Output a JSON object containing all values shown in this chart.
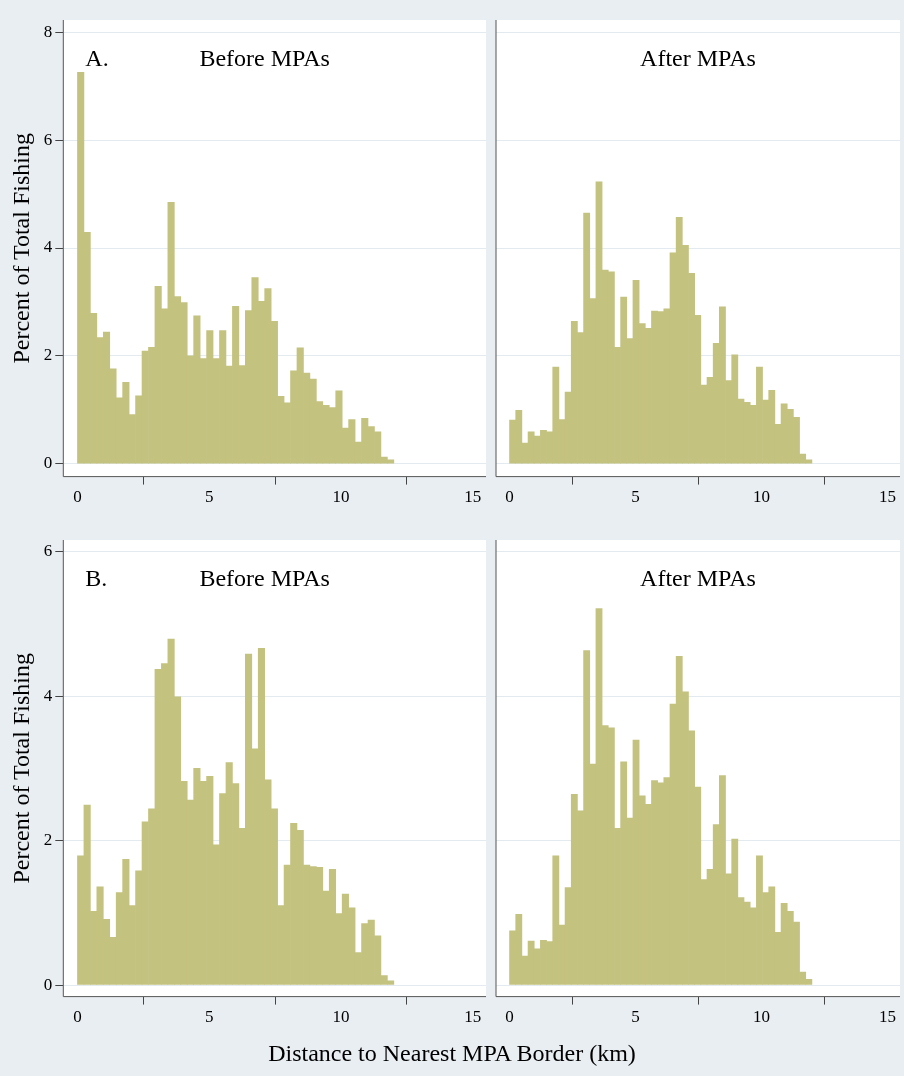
{
  "chart_data": [
    {
      "type": "histogram",
      "title": "Before MPAs",
      "annotations": [
        "A."
      ],
      "ylabel": "Percent of Total Fishing",
      "color": "#c4c27f",
      "grid": "y",
      "xlim": [
        -0.54,
        15.5
      ],
      "xticks": [
        0,
        5,
        10,
        15
      ],
      "ylim": [
        -0.24,
        8.23
      ],
      "yticks": [
        0,
        2,
        4,
        6,
        8
      ],
      "bins": [
        0,
        0.24,
        0.49,
        0.73,
        0.98,
        1.22,
        1.47,
        1.71,
        1.96,
        2.2,
        2.45,
        2.69,
        2.94,
        3.18,
        3.43,
        3.67,
        3.92,
        4.16,
        4.41,
        4.65,
        4.9,
        5.14,
        5.39,
        5.63,
        5.88,
        6.12,
        6.37,
        6.61,
        6.86,
        7.1,
        7.35,
        7.59,
        7.84,
        8.08,
        8.33,
        8.57,
        8.82,
        9.06,
        9.31,
        9.55,
        9.8,
        10.04,
        10.29,
        10.53,
        10.78,
        11.02,
        11.27,
        11.51,
        11.76,
        12
      ],
      "values": [
        7.26,
        4.29,
        2.79,
        2.34,
        2.44,
        1.76,
        1.22,
        1.51,
        0.91,
        1.26,
        2.09,
        2.16,
        3.29,
        2.87,
        4.85,
        3.1,
        2.99,
        2.0,
        2.74,
        1.95,
        2.47,
        1.95,
        2.47,
        1.81,
        2.92,
        1.82,
        2.84,
        3.45,
        3.01,
        3.25,
        2.64,
        1.25,
        1.13,
        1.72,
        2.15,
        1.68,
        1.57,
        1.15,
        1.08,
        1.04,
        1.35,
        0.66,
        0.82,
        0.4,
        0.84,
        0.69,
        0.59,
        0.12,
        0.07
      ]
    },
    {
      "type": "histogram",
      "title": "After MPAs",
      "color": "#c4c27f",
      "grid": "y",
      "tick_labels": "x",
      "xlim": [
        -0.54,
        15.5
      ],
      "xticks": [
        0,
        5,
        10,
        15
      ],
      "ylim": [
        -0.24,
        8.23
      ],
      "yticks": [
        0,
        2,
        4,
        6,
        8
      ],
      "bins": [
        0,
        0.24,
        0.49,
        0.73,
        0.98,
        1.22,
        1.47,
        1.71,
        1.96,
        2.2,
        2.45,
        2.69,
        2.94,
        3.18,
        3.43,
        3.67,
        3.92,
        4.16,
        4.41,
        4.65,
        4.9,
        5.14,
        5.39,
        5.63,
        5.88,
        6.12,
        6.37,
        6.61,
        6.86,
        7.1,
        7.35,
        7.59,
        7.84,
        8.08,
        8.33,
        8.57,
        8.82,
        9.06,
        9.31,
        9.55,
        9.8,
        10.04,
        10.29,
        10.53,
        10.78,
        11.02,
        11.27,
        11.51,
        11.76,
        12
      ],
      "values": [
        0.81,
        0.99,
        0.38,
        0.59,
        0.51,
        0.62,
        0.59,
        1.79,
        0.82,
        1.33,
        2.64,
        2.43,
        4.65,
        3.06,
        5.23,
        3.59,
        3.56,
        2.16,
        3.09,
        2.32,
        3.4,
        2.6,
        2.51,
        2.83,
        2.82,
        2.87,
        3.91,
        4.57,
        4.05,
        3.53,
        2.75,
        1.46,
        1.6,
        2.23,
        2.91,
        1.54,
        2.02,
        1.2,
        1.14,
        1.08,
        1.79,
        1.18,
        1.36,
        0.73,
        1.11,
        1.01,
        0.86,
        0.18,
        0.07
      ]
    },
    {
      "type": "histogram",
      "title": "Before MPAs",
      "annotations": [
        "B."
      ],
      "ylabel": "Percent of Total Fishing",
      "xlabel": "Distance to Nearest MPA Border (km)",
      "color": "#c4c27f",
      "grid": "y",
      "xlim": [
        -0.54,
        15.5
      ],
      "xticks": [
        0,
        5,
        10,
        15
      ],
      "ylim": [
        -0.16,
        6.16
      ],
      "yticks": [
        0,
        2,
        4,
        6
      ],
      "bins": [
        0,
        0.24,
        0.49,
        0.73,
        0.98,
        1.22,
        1.47,
        1.71,
        1.96,
        2.2,
        2.45,
        2.69,
        2.94,
        3.18,
        3.43,
        3.67,
        3.92,
        4.16,
        4.41,
        4.65,
        4.9,
        5.14,
        5.39,
        5.63,
        5.88,
        6.12,
        6.37,
        6.61,
        6.86,
        7.1,
        7.35,
        7.59,
        7.84,
        8.08,
        8.33,
        8.57,
        8.82,
        9.06,
        9.31,
        9.55,
        9.8,
        10.04,
        10.29,
        10.53,
        10.78,
        11.02,
        11.27,
        11.51,
        11.76,
        12
      ],
      "values": [
        1.79,
        2.49,
        1.02,
        1.36,
        0.91,
        0.66,
        1.28,
        1.74,
        1.1,
        1.58,
        2.26,
        2.44,
        4.37,
        4.45,
        4.79,
        3.99,
        2.82,
        2.56,
        3.0,
        2.82,
        2.89,
        1.94,
        2.65,
        3.08,
        2.79,
        2.17,
        4.58,
        3.27,
        4.66,
        2.84,
        2.44,
        1.1,
        1.66,
        2.24,
        2.14,
        1.66,
        1.64,
        1.63,
        1.3,
        1.6,
        0.99,
        1.26,
        1.07,
        0.45,
        0.85,
        0.9,
        0.68,
        0.13,
        0.06
      ]
    },
    {
      "type": "histogram",
      "title": "After MPAs",
      "color": "#c4c27f",
      "grid": "y",
      "tick_labels": "x",
      "xlim": [
        -0.54,
        15.5
      ],
      "xticks": [
        0,
        5,
        10,
        15
      ],
      "ylim": [
        -0.16,
        6.16
      ],
      "yticks": [
        0,
        2,
        4,
        6
      ],
      "bins": [
        0,
        0.24,
        0.49,
        0.73,
        0.98,
        1.22,
        1.47,
        1.71,
        1.96,
        2.2,
        2.45,
        2.69,
        2.94,
        3.18,
        3.43,
        3.67,
        3.92,
        4.16,
        4.41,
        4.65,
        4.9,
        5.14,
        5.39,
        5.63,
        5.88,
        6.12,
        6.37,
        6.61,
        6.86,
        7.1,
        7.35,
        7.59,
        7.84,
        8.08,
        8.33,
        8.57,
        8.82,
        9.06,
        9.31,
        9.55,
        9.8,
        10.04,
        10.29,
        10.53,
        10.78,
        11.02,
        11.27,
        11.51,
        11.76,
        12
      ],
      "values": [
        0.75,
        0.98,
        0.4,
        0.61,
        0.5,
        0.62,
        0.6,
        1.79,
        0.83,
        1.35,
        2.64,
        2.41,
        4.63,
        3.06,
        5.21,
        3.59,
        3.56,
        2.17,
        3.09,
        2.31,
        3.39,
        2.62,
        2.5,
        2.83,
        2.8,
        2.87,
        3.89,
        4.55,
        4.06,
        3.52,
        2.74,
        1.46,
        1.6,
        2.22,
        2.9,
        1.54,
        2.02,
        1.21,
        1.15,
        1.07,
        1.79,
        1.28,
        1.36,
        0.73,
        1.13,
        1.02,
        0.87,
        0.18,
        0.08
      ]
    }
  ]
}
